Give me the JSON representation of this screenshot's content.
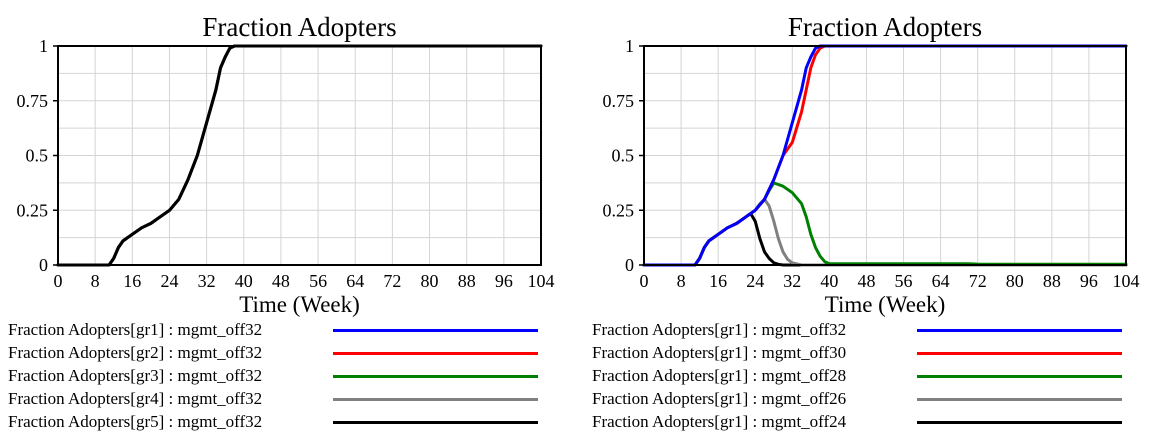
{
  "chart_data": [
    {
      "type": "line",
      "title": "Fraction Adopters",
      "xlabel": "Time (Week)",
      "ylabel": "",
      "xlim": [
        0,
        104
      ],
      "ylim": [
        0,
        1
      ],
      "xticks": [
        "0",
        "8",
        "16",
        "24",
        "32",
        "40",
        "48",
        "56",
        "64",
        "72",
        "80",
        "88",
        "96",
        "104"
      ],
      "yticks": [
        "0",
        "0.25",
        "0.5",
        "0.75",
        "1"
      ],
      "grid": true,
      "legend_position": "bottom",
      "series": [
        {
          "name": "Fraction Adopters[gr1] : mgmt_off32",
          "color": "#0000ff",
          "x": [
            0,
            11,
            12,
            13,
            14,
            16,
            18,
            20,
            22,
            24,
            26,
            28,
            30,
            32,
            34,
            35,
            36,
            37,
            38,
            40,
            104
          ],
          "y": [
            0,
            0,
            0.03,
            0.08,
            0.11,
            0.14,
            0.17,
            0.19,
            0.22,
            0.25,
            0.3,
            0.39,
            0.5,
            0.65,
            0.8,
            0.9,
            0.95,
            0.99,
            1,
            1,
            1
          ]
        },
        {
          "name": "Fraction Adopters[gr2] : mgmt_off32",
          "color": "#ff0000",
          "x": [
            0,
            11,
            12,
            13,
            14,
            16,
            18,
            20,
            22,
            24,
            26,
            28,
            30,
            32,
            34,
            35,
            36,
            37,
            38,
            40,
            104
          ],
          "y": [
            0,
            0,
            0.03,
            0.08,
            0.11,
            0.14,
            0.17,
            0.19,
            0.22,
            0.25,
            0.3,
            0.39,
            0.5,
            0.65,
            0.8,
            0.9,
            0.95,
            0.99,
            1,
            1,
            1
          ]
        },
        {
          "name": "Fraction Adopters[gr3] : mgmt_off32",
          "color": "#008000",
          "x": [
            0,
            11,
            12,
            13,
            14,
            16,
            18,
            20,
            22,
            24,
            26,
            28,
            30,
            32,
            34,
            35,
            36,
            37,
            38,
            40,
            104
          ],
          "y": [
            0,
            0,
            0.03,
            0.08,
            0.11,
            0.14,
            0.17,
            0.19,
            0.22,
            0.25,
            0.3,
            0.39,
            0.5,
            0.65,
            0.8,
            0.9,
            0.95,
            0.99,
            1,
            1,
            1
          ]
        },
        {
          "name": "Fraction Adopters[gr4] : mgmt_off32",
          "color": "#808080",
          "x": [
            0,
            11,
            12,
            13,
            14,
            16,
            18,
            20,
            22,
            24,
            26,
            28,
            30,
            32,
            34,
            35,
            36,
            37,
            38,
            40,
            104
          ],
          "y": [
            0,
            0,
            0.03,
            0.08,
            0.11,
            0.14,
            0.17,
            0.19,
            0.22,
            0.25,
            0.3,
            0.39,
            0.5,
            0.65,
            0.8,
            0.9,
            0.95,
            0.99,
            1,
            1,
            1
          ]
        },
        {
          "name": "Fraction Adopters[gr5] : mgmt_off32",
          "color": "#000000",
          "x": [
            0,
            11,
            12,
            13,
            14,
            16,
            18,
            20,
            22,
            24,
            26,
            28,
            30,
            32,
            34,
            35,
            36,
            37,
            38,
            40,
            104
          ],
          "y": [
            0,
            0,
            0.03,
            0.08,
            0.11,
            0.14,
            0.17,
            0.19,
            0.22,
            0.25,
            0.3,
            0.39,
            0.5,
            0.65,
            0.8,
            0.9,
            0.95,
            0.99,
            1,
            1,
            1
          ]
        }
      ]
    },
    {
      "type": "line",
      "title": "Fraction Adopters",
      "xlabel": "Time (Week)",
      "ylabel": "",
      "xlim": [
        0,
        104
      ],
      "ylim": [
        0,
        1
      ],
      "xticks": [
        "0",
        "8",
        "16",
        "24",
        "32",
        "40",
        "48",
        "56",
        "64",
        "72",
        "80",
        "88",
        "96",
        "104"
      ],
      "yticks": [
        "0",
        "0.25",
        "0.5",
        "0.75",
        "1"
      ],
      "grid": true,
      "legend_position": "bottom",
      "series": [
        {
          "name": "Fraction Adopters[gr1] : mgmt_off24",
          "color": "#000000",
          "x": [
            0,
            11,
            12,
            13,
            14,
            16,
            18,
            20,
            22,
            23,
            24,
            25,
            26,
            27,
            28,
            29,
            30,
            104
          ],
          "y": [
            0,
            0,
            0.03,
            0.08,
            0.11,
            0.14,
            0.17,
            0.19,
            0.22,
            0.235,
            0.2,
            0.12,
            0.06,
            0.03,
            0.01,
            0.003,
            0,
            0
          ]
        },
        {
          "name": "Fraction Adopters[gr1] : mgmt_off26",
          "color": "#808080",
          "x": [
            0,
            11,
            12,
            13,
            14,
            16,
            18,
            20,
            22,
            24,
            25,
            26,
            27,
            28,
            29,
            30,
            31,
            32,
            34,
            104
          ],
          "y": [
            0,
            0,
            0.03,
            0.08,
            0.11,
            0.14,
            0.17,
            0.19,
            0.22,
            0.25,
            0.28,
            0.3,
            0.27,
            0.2,
            0.12,
            0.06,
            0.025,
            0.01,
            0,
            0
          ]
        },
        {
          "name": "Fraction Adopters[gr1] : mgmt_off28",
          "color": "#008000",
          "x": [
            0,
            11,
            12,
            13,
            14,
            16,
            18,
            20,
            22,
            24,
            26,
            27,
            28,
            30,
            32,
            34,
            35,
            36,
            37,
            38,
            39,
            40,
            45,
            50,
            60,
            70,
            72,
            80,
            104
          ],
          "y": [
            0,
            0,
            0.03,
            0.08,
            0.11,
            0.14,
            0.17,
            0.19,
            0.22,
            0.25,
            0.3,
            0.34,
            0.375,
            0.36,
            0.33,
            0.28,
            0.22,
            0.14,
            0.08,
            0.04,
            0.015,
            0.006,
            0.006,
            0.006,
            0.006,
            0.006,
            0.004,
            0.003,
            0.003
          ]
        },
        {
          "name": "Fraction Adopters[gr1] : mgmt_off30",
          "color": "#ff0000",
          "x": [
            0,
            11,
            12,
            13,
            14,
            16,
            18,
            20,
            22,
            24,
            26,
            28,
            30,
            32,
            34,
            36,
            37,
            38,
            39,
            40,
            104
          ],
          "y": [
            0,
            0,
            0.03,
            0.08,
            0.11,
            0.14,
            0.17,
            0.19,
            0.22,
            0.25,
            0.3,
            0.39,
            0.5,
            0.56,
            0.7,
            0.9,
            0.96,
            0.99,
            1,
            1,
            1
          ]
        },
        {
          "name": "Fraction Adopters[gr1] : mgmt_off32",
          "color": "#0000ff",
          "x": [
            0,
            11,
            12,
            13,
            14,
            16,
            18,
            20,
            22,
            24,
            26,
            28,
            30,
            32,
            34,
            35,
            36,
            37,
            38,
            40,
            104
          ],
          "y": [
            0,
            0,
            0.03,
            0.08,
            0.11,
            0.14,
            0.17,
            0.19,
            0.22,
            0.25,
            0.3,
            0.39,
            0.5,
            0.65,
            0.8,
            0.9,
            0.95,
            0.99,
            1,
            1,
            1
          ]
        }
      ],
      "legend_order": [
        4,
        3,
        2,
        1,
        0
      ]
    }
  ],
  "legends": [
    {
      "items": [
        {
          "label": "Fraction Adopters[gr1] : mgmt_off32",
          "color": "#0000ff"
        },
        {
          "label": "Fraction Adopters[gr2] : mgmt_off32",
          "color": "#ff0000"
        },
        {
          "label": "Fraction Adopters[gr3] : mgmt_off32",
          "color": "#008000"
        },
        {
          "label": "Fraction Adopters[gr4] : mgmt_off32",
          "color": "#808080"
        },
        {
          "label": "Fraction Adopters[gr5] : mgmt_off32",
          "color": "#000000"
        }
      ]
    },
    {
      "items": [
        {
          "label": "Fraction Adopters[gr1] : mgmt_off32",
          "color": "#0000ff"
        },
        {
          "label": "Fraction Adopters[gr1] : mgmt_off30",
          "color": "#ff0000"
        },
        {
          "label": "Fraction Adopters[gr1] : mgmt_off28",
          "color": "#008000"
        },
        {
          "label": "Fraction Adopters[gr1] : mgmt_off26",
          "color": "#808080"
        },
        {
          "label": "Fraction Adopters[gr1] : mgmt_off24",
          "color": "#000000"
        }
      ]
    }
  ]
}
